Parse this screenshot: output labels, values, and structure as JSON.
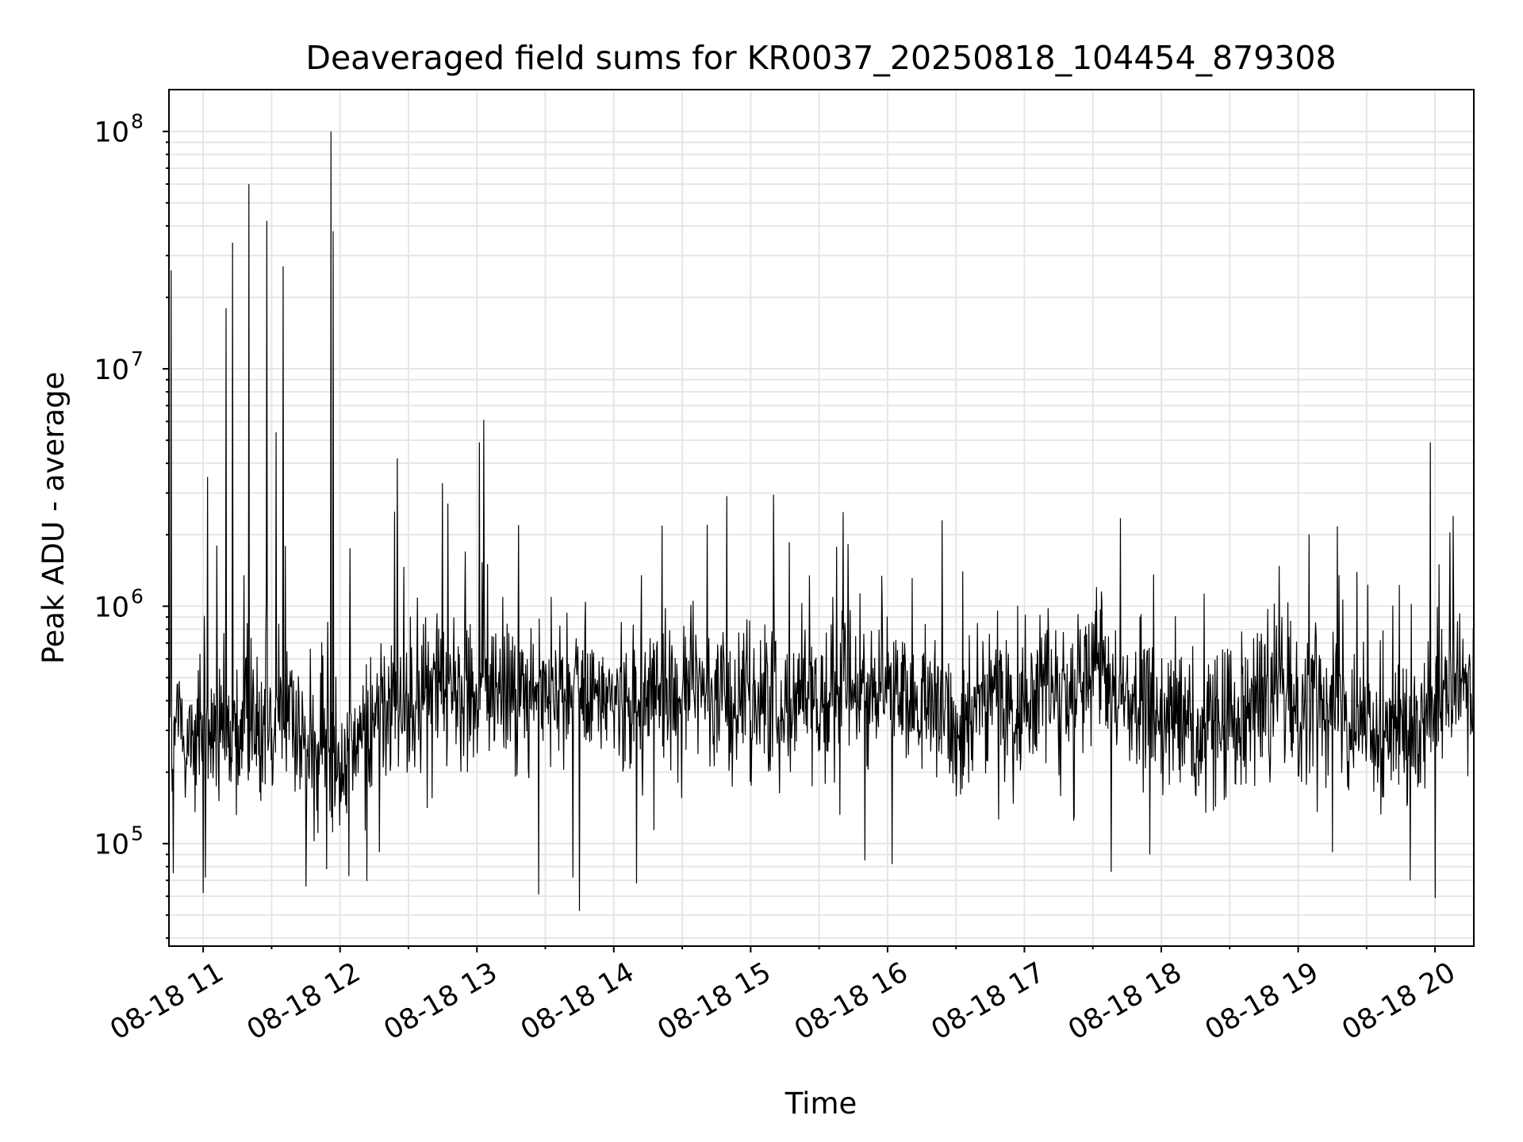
{
  "chart_data": {
    "type": "line",
    "title": "Deaveraged field sums for KR0037_20250818_104454_879308",
    "xlabel": "Time",
    "ylabel": "Peak ADU - average",
    "x_scale": "time",
    "y_scale": "log",
    "grid": "major and minor, x and y",
    "xlim": [
      "2025-08-18 10:45",
      "2025-08-18 20:17"
    ],
    "ylim": [
      37000,
      150000000
    ],
    "x_ticks": [
      {
        "time": "2025-08-18 11:00",
        "label": "08-18 11"
      },
      {
        "time": "2025-08-18 12:00",
        "label": "08-18 12"
      },
      {
        "time": "2025-08-18 13:00",
        "label": "08-18 13"
      },
      {
        "time": "2025-08-18 14:00",
        "label": "08-18 14"
      },
      {
        "time": "2025-08-18 15:00",
        "label": "08-18 15"
      },
      {
        "time": "2025-08-18 16:00",
        "label": "08-18 16"
      },
      {
        "time": "2025-08-18 17:00",
        "label": "08-18 17"
      },
      {
        "time": "2025-08-18 18:00",
        "label": "08-18 18"
      },
      {
        "time": "2025-08-18 19:00",
        "label": "08-18 19"
      },
      {
        "time": "2025-08-18 20:00",
        "label": "08-18 20"
      }
    ],
    "y_ticks": [
      {
        "value": 100000,
        "base": "10",
        "exp": "5"
      },
      {
        "value": 1000000,
        "base": "10",
        "exp": "6"
      },
      {
        "value": 10000000,
        "base": "10",
        "exp": "7"
      },
      {
        "value": 100000000,
        "base": "10",
        "exp": "8"
      }
    ],
    "baseline": [
      {
        "time": "2025-08-18 10:45",
        "value": 300000
      },
      {
        "time": "2025-08-18 11:10",
        "value": 280000
      },
      {
        "time": "2025-08-18 11:30",
        "value": 350000
      },
      {
        "time": "2025-08-18 11:40",
        "value": 400000
      },
      {
        "time": "2025-08-18 11:45",
        "value": 230000
      },
      {
        "time": "2025-08-18 12:00",
        "value": 220000
      },
      {
        "time": "2025-08-18 12:15",
        "value": 320000
      },
      {
        "time": "2025-08-18 12:30",
        "value": 400000
      },
      {
        "time": "2025-08-18 12:45",
        "value": 450000
      },
      {
        "time": "2025-08-18 13:00",
        "value": 460000
      },
      {
        "time": "2025-08-18 13:30",
        "value": 430000
      },
      {
        "time": "2025-08-18 14:00",
        "value": 410000
      },
      {
        "time": "2025-08-18 14:30",
        "value": 440000
      },
      {
        "time": "2025-08-18 15:00",
        "value": 420000
      },
      {
        "time": "2025-08-18 15:30",
        "value": 410000
      },
      {
        "time": "2025-08-18 16:00",
        "value": 440000
      },
      {
        "time": "2025-08-18 16:30",
        "value": 330000
      },
      {
        "time": "2025-08-18 17:00",
        "value": 430000
      },
      {
        "time": "2025-08-18 17:30",
        "value": 480000
      },
      {
        "time": "2025-08-18 18:00",
        "value": 350000
      },
      {
        "time": "2025-08-18 18:15",
        "value": 290000
      },
      {
        "time": "2025-08-18 18:45",
        "value": 450000
      },
      {
        "time": "2025-08-18 19:15",
        "value": 400000
      },
      {
        "time": "2025-08-18 19:30",
        "value": 300000
      },
      {
        "time": "2025-08-18 19:50",
        "value": 260000
      },
      {
        "time": "2025-08-18 20:05",
        "value": 420000
      },
      {
        "time": "2025-08-18 20:17",
        "value": 480000
      }
    ],
    "spikes": [
      {
        "time": "2025-08-18 10:46",
        "value": 26000000
      },
      {
        "time": "2025-08-18 11:02",
        "value": 3500000
      },
      {
        "time": "2025-08-18 11:06",
        "value": 1800000
      },
      {
        "time": "2025-08-18 11:10",
        "value": 18000000
      },
      {
        "time": "2025-08-18 11:13",
        "value": 34000000
      },
      {
        "time": "2025-08-18 11:18",
        "value": 1350000
      },
      {
        "time": "2025-08-18 11:20",
        "value": 60000000
      },
      {
        "time": "2025-08-18 11:28",
        "value": 42000000
      },
      {
        "time": "2025-08-18 11:32",
        "value": 5400000
      },
      {
        "time": "2025-08-18 11:35",
        "value": 27000000
      },
      {
        "time": "2025-08-18 11:56",
        "value": 100000000
      },
      {
        "time": "2025-08-18 11:57",
        "value": 38000000
      },
      {
        "time": "2025-08-18 12:24",
        "value": 2500000
      },
      {
        "time": "2025-08-18 12:25",
        "value": 4200000
      },
      {
        "time": "2025-08-18 12:45",
        "value": 3300000
      },
      {
        "time": "2025-08-18 12:55",
        "value": 1700000
      },
      {
        "time": "2025-08-18 13:01",
        "value": 4900000
      },
      {
        "time": "2025-08-18 13:03",
        "value": 6100000
      },
      {
        "time": "2025-08-18 14:12",
        "value": 1350000
      },
      {
        "time": "2025-08-18 14:41",
        "value": 2200000
      },
      {
        "time": "2025-08-18 15:10",
        "value": 2950000
      },
      {
        "time": "2025-08-18 16:24",
        "value": 2300000
      },
      {
        "time": "2025-08-18 17:42",
        "value": 2350000
      },
      {
        "time": "2025-08-18 19:18",
        "value": 1350000
      },
      {
        "time": "2025-08-18 19:58",
        "value": 4900000
      },
      {
        "time": "2025-08-18 20:08",
        "value": 2400000
      }
    ],
    "dips": [
      {
        "time": "2025-08-18 10:47",
        "value": 75000
      },
      {
        "time": "2025-08-18 11:00",
        "value": 62000
      },
      {
        "time": "2025-08-18 11:01",
        "value": 72000
      },
      {
        "time": "2025-08-18 11:45",
        "value": 66000
      },
      {
        "time": "2025-08-18 11:54",
        "value": 78000
      },
      {
        "time": "2025-08-18 12:04",
        "value": 73000
      },
      {
        "time": "2025-08-18 13:27",
        "value": 61000
      },
      {
        "time": "2025-08-18 13:42",
        "value": 72000
      },
      {
        "time": "2025-08-18 13:45",
        "value": 52000
      },
      {
        "time": "2025-08-18 14:10",
        "value": 68000
      },
      {
        "time": "2025-08-18 15:50",
        "value": 85000
      },
      {
        "time": "2025-08-18 16:02",
        "value": 82000
      },
      {
        "time": "2025-08-18 17:38",
        "value": 76000
      },
      {
        "time": "2025-08-18 17:55",
        "value": 90000
      },
      {
        "time": "2025-08-18 19:15",
        "value": 92000
      },
      {
        "time": "2025-08-18 19:49",
        "value": 70000
      },
      {
        "time": "2025-08-18 20:00",
        "value": 59000
      }
    ]
  }
}
